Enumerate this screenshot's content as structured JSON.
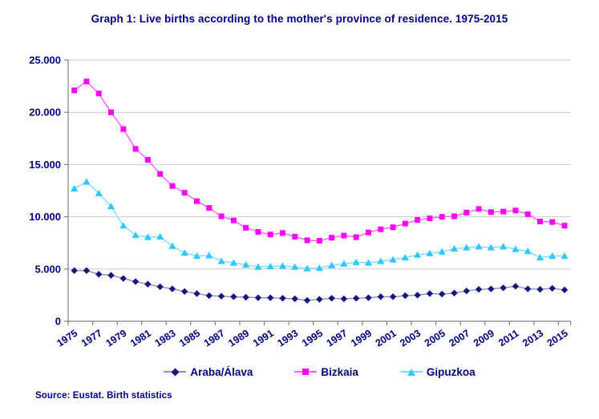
{
  "chart_data": {
    "type": "line",
    "title": "Graph 1: Live births according to the mother's province of residence. 1975-2015",
    "source": "Source: Eustat. Birth statistics",
    "xlabel": "",
    "ylabel": "",
    "ylim": [
      0,
      25000
    ],
    "grid": "horizontal",
    "legend_position": "bottom",
    "years": [
      1975,
      1976,
      1977,
      1978,
      1979,
      1980,
      1981,
      1982,
      1983,
      1984,
      1985,
      1986,
      1987,
      1988,
      1989,
      1990,
      1991,
      1992,
      1993,
      1994,
      1995,
      1996,
      1997,
      1998,
      1999,
      2000,
      2001,
      2002,
      2003,
      2004,
      2005,
      2006,
      2007,
      2008,
      2009,
      2010,
      2011,
      2012,
      2013,
      2014,
      2015
    ],
    "x_tick_labels": [
      "1975",
      "1977",
      "1979",
      "1981",
      "1983",
      "1985",
      "1987",
      "1989",
      "1991",
      "1993",
      "1995",
      "1997",
      "1999",
      "2001",
      "2003",
      "2005",
      "2007",
      "2009",
      "2011",
      "2013",
      "2015"
    ],
    "y_ticks": [
      {
        "value": 0,
        "label": "0"
      },
      {
        "value": 5000,
        "label": "5.000"
      },
      {
        "value": 10000,
        "label": "10.000"
      },
      {
        "value": 15000,
        "label": "15.000"
      },
      {
        "value": 20000,
        "label": "20.000"
      },
      {
        "value": 25000,
        "label": "25.000"
      }
    ],
    "series": [
      {
        "name": "Araba/Álava",
        "marker": "diamond",
        "color": "#151580",
        "line_color": "#8F8FB4",
        "values": [
          4850,
          4850,
          4500,
          4400,
          4100,
          3800,
          3550,
          3300,
          3100,
          2850,
          2650,
          2450,
          2400,
          2350,
          2300,
          2250,
          2250,
          2200,
          2150,
          2000,
          2100,
          2200,
          2150,
          2200,
          2250,
          2350,
          2350,
          2450,
          2500,
          2650,
          2600,
          2700,
          2900,
          3050,
          3100,
          3200,
          3350,
          3100,
          3050,
          3150,
          3000
        ]
      },
      {
        "name": "Bizkaia",
        "marker": "square",
        "color": "#FF00FF",
        "line_color": "#FF5CFF",
        "values": [
          22100,
          22950,
          21800,
          20000,
          18400,
          16500,
          15450,
          14100,
          12950,
          12300,
          11500,
          10850,
          10050,
          9650,
          8950,
          8550,
          8300,
          8450,
          8100,
          7750,
          7700,
          8000,
          8200,
          8050,
          8500,
          8800,
          9000,
          9350,
          9700,
          9850,
          10000,
          10050,
          10400,
          10750,
          10450,
          10500,
          10600,
          10250,
          9550,
          9500,
          9150
        ]
      },
      {
        "name": "Gipuzkoa",
        "marker": "triangle",
        "color": "#2FC8FF",
        "line_color": "#7DDCFF",
        "values": [
          12700,
          13350,
          12250,
          11000,
          9150,
          8250,
          8050,
          8100,
          7200,
          6550,
          6250,
          6300,
          5750,
          5600,
          5400,
          5200,
          5250,
          5300,
          5200,
          5050,
          5100,
          5350,
          5500,
          5650,
          5600,
          5750,
          5900,
          6100,
          6350,
          6500,
          6650,
          6950,
          7050,
          7150,
          7050,
          7150,
          6900,
          6700,
          6100,
          6250,
          6250
        ]
      }
    ],
    "colors": {
      "text": "#000080",
      "gridline": "#C9C9C9",
      "axis": "#808080",
      "background": "#FFFFFF"
    }
  }
}
